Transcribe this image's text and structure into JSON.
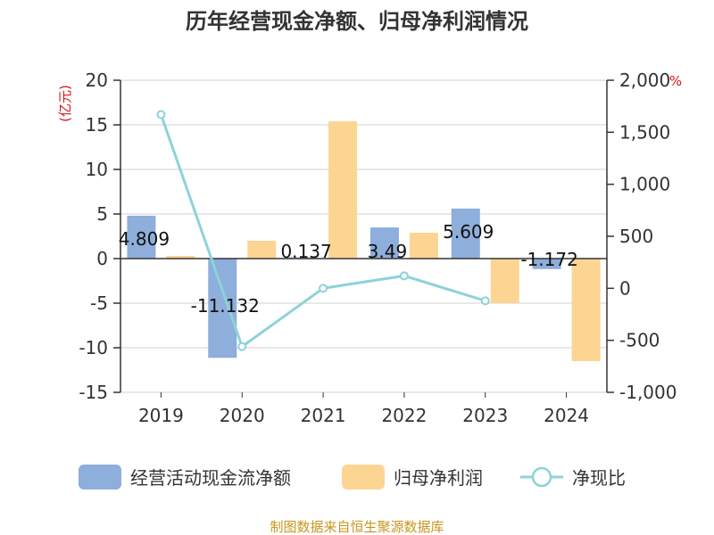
{
  "chart_data": {
    "type": "bar",
    "title": "历年经营现金净额、归母净利润情况",
    "categories": [
      "2019",
      "2020",
      "2021",
      "2022",
      "2023",
      "2024"
    ],
    "series": [
      {
        "name": "经营活动现金流净额",
        "type": "bar",
        "axis": "left",
        "color": "#8eaedb",
        "values": [
          4.809,
          -11.132,
          0.137,
          3.49,
          5.609,
          -1.172
        ]
      },
      {
        "name": "归母净利润",
        "type": "bar",
        "axis": "left",
        "color": "#fdd593",
        "values": [
          0.3,
          2.0,
          15.4,
          2.9,
          -5.0,
          -11.5
        ]
      },
      {
        "name": "净现比",
        "type": "line",
        "axis": "right",
        "color": "#8dd3d8",
        "values": [
          1670,
          -560,
          0,
          120,
          -120,
          null
        ]
      }
    ],
    "data_labels": [
      "4.809",
      "-11.132",
      "0.137",
      "3.49",
      "5.609",
      "-1.172"
    ],
    "y_left": {
      "unit": "(亿元)",
      "min": -15,
      "max": 20,
      "ticks": [
        "-15",
        "-10",
        "-5",
        "0",
        "5",
        "10",
        "15",
        "20"
      ]
    },
    "y_right": {
      "unit": "%",
      "min": -1000,
      "max": 2000,
      "ticks": [
        "-1,000",
        "-500",
        "0",
        "500",
        "1,000",
        "1,500",
        "2,000"
      ]
    },
    "legend": [
      "经营活动现金流净额",
      "归母净利润",
      "净现比"
    ],
    "source": "制图数据来自恒生聚源数据库"
  }
}
